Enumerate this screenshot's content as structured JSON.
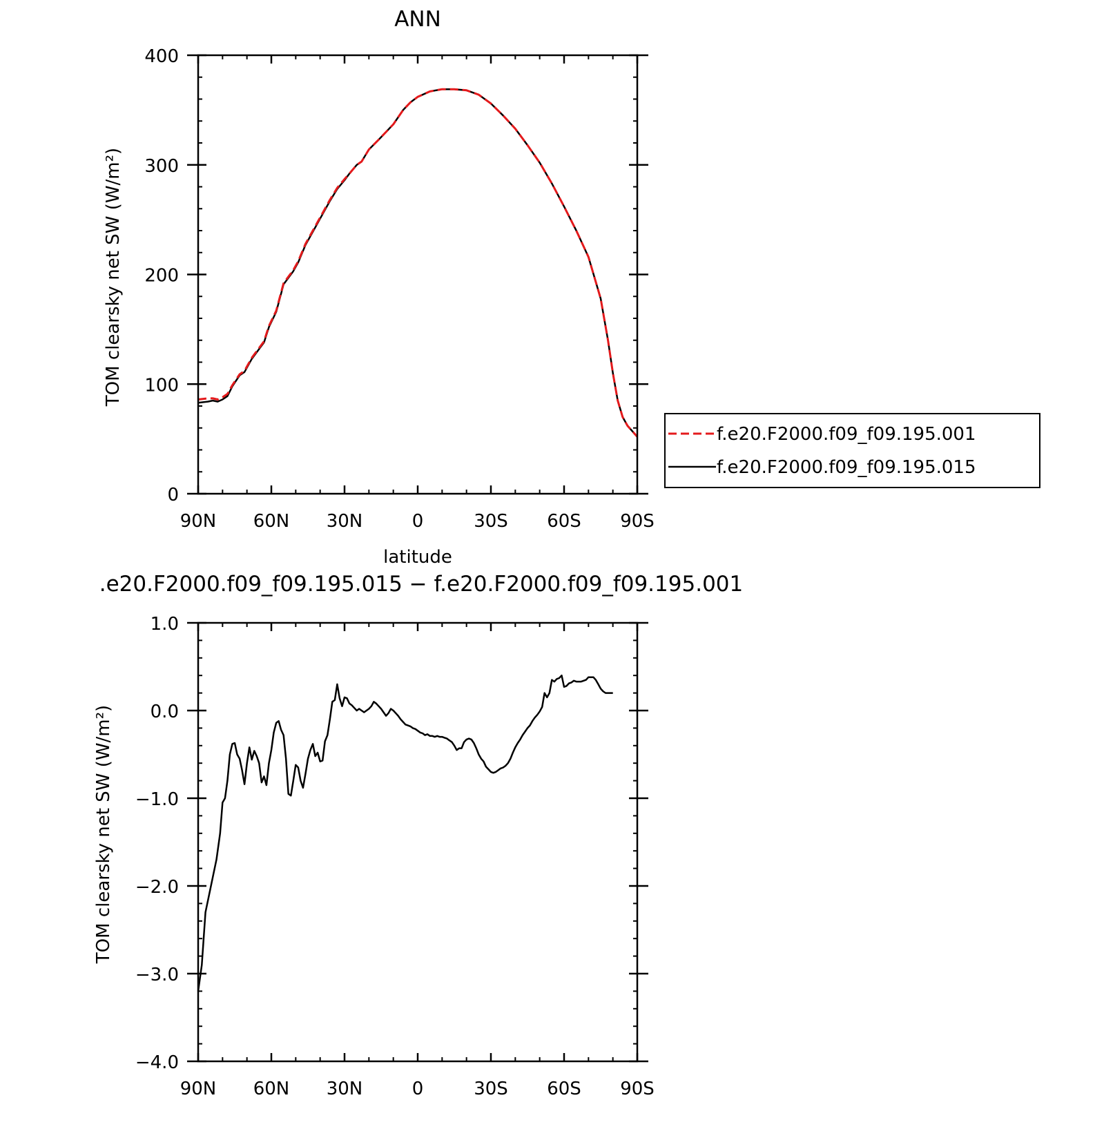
{
  "chart_data": [
    {
      "type": "line",
      "title": "ANN",
      "xlabel": "latitude",
      "ylabel": "TOM clearsky net SW (W/m²)",
      "x_ticks": [
        "90N",
        "60N",
        "30N",
        "0",
        "30S",
        "60S",
        "90S"
      ],
      "y_ticks": [
        "400",
        "300",
        "200",
        "100",
        "0"
      ],
      "xlim": [
        90,
        -90
      ],
      "ylim": [
        0,
        400
      ],
      "grid": false,
      "legend_position": "outside-right",
      "series": [
        {
          "name": "f.e20.F2000.f09_f09.195.001",
          "color": "#e41a1c",
          "dashed": true,
          "points": [
            [
              90,
              86
            ],
            [
              86,
              87
            ],
            [
              84,
              87
            ],
            [
              82,
              86
            ],
            [
              80,
              88
            ],
            [
              78,
              91
            ],
            [
              76,
              99
            ],
            [
              73,
              109
            ],
            [
              71,
              112
            ],
            [
              68,
              124
            ],
            [
              65,
              133
            ],
            [
              63,
              139
            ],
            [
              61,
              153
            ],
            [
              58,
              167
            ],
            [
              55,
              192
            ],
            [
              51,
              204
            ],
            [
              49,
              212
            ],
            [
              46,
              228
            ],
            [
              43,
              240
            ],
            [
              39,
              256
            ],
            [
              36,
              268
            ],
            [
              33,
              279
            ],
            [
              30,
              287
            ],
            [
              28,
              292
            ],
            [
              25,
              300
            ],
            [
              23,
              303
            ],
            [
              20,
              314
            ],
            [
              16,
              323
            ],
            [
              13,
              330
            ],
            [
              10,
              337
            ],
            [
              6,
              350
            ],
            [
              3,
              357
            ],
            [
              0,
              362
            ],
            [
              -5,
              367
            ],
            [
              -10,
              369
            ],
            [
              -15,
              369
            ],
            [
              -20,
              368
            ],
            [
              -25,
              364
            ],
            [
              -30,
              356
            ],
            [
              -35,
              345
            ],
            [
              -40,
              333
            ],
            [
              -45,
              318
            ],
            [
              -50,
              302
            ],
            [
              -55,
              283
            ],
            [
              -60,
              262
            ],
            [
              -65,
              240
            ],
            [
              -70,
              216
            ],
            [
              -75,
              178
            ],
            [
              -78,
              140
            ],
            [
              -80,
              110
            ],
            [
              -82,
              85
            ],
            [
              -84,
              70
            ],
            [
              -86,
              62
            ],
            [
              -88,
              57
            ],
            [
              -90,
              52
            ]
          ]
        },
        {
          "name": "f.e20.F2000.f09_f09.195.015",
          "color": "#000000",
          "dashed": false,
          "points": [
            [
              90,
              83
            ],
            [
              86,
              84
            ],
            [
              84,
              85
            ],
            [
              82,
              84
            ],
            [
              80,
              86
            ],
            [
              78,
              89
            ],
            [
              76,
              98
            ],
            [
              73,
              108
            ],
            [
              71,
              111
            ],
            [
              68,
              123
            ],
            [
              65,
              132
            ],
            [
              63,
              138
            ],
            [
              61,
              152
            ],
            [
              58,
              166
            ],
            [
              55,
              191
            ],
            [
              51,
              203
            ],
            [
              49,
              211
            ],
            [
              46,
              227
            ],
            [
              43,
              239
            ],
            [
              39,
              255
            ],
            [
              36,
              267
            ],
            [
              33,
              278
            ],
            [
              30,
              286
            ],
            [
              28,
              292
            ],
            [
              25,
              300
            ],
            [
              23,
              303
            ],
            [
              20,
              314
            ],
            [
              16,
              323
            ],
            [
              13,
              330
            ],
            [
              10,
              337
            ],
            [
              6,
              350
            ],
            [
              3,
              357
            ],
            [
              0,
              362
            ],
            [
              -5,
              367
            ],
            [
              -10,
              369
            ],
            [
              -15,
              369
            ],
            [
              -20,
              368
            ],
            [
              -25,
              364
            ],
            [
              -30,
              356
            ],
            [
              -35,
              345
            ],
            [
              -40,
              333
            ],
            [
              -45,
              318
            ],
            [
              -50,
              302
            ],
            [
              -55,
              283
            ],
            [
              -60,
              262
            ],
            [
              -65,
              240
            ],
            [
              -70,
              216
            ],
            [
              -75,
              178
            ],
            [
              -78,
              140
            ],
            [
              -80,
              110
            ],
            [
              -82,
              85
            ],
            [
              -84,
              70
            ],
            [
              -86,
              62
            ],
            [
              -88,
              57
            ],
            [
              -90,
              52
            ]
          ]
        }
      ]
    },
    {
      "type": "line",
      "title": ".e20.F2000.f09_f09.195.015 − f.e20.F2000.f09_f09.195.001",
      "xlabel": "latitude",
      "ylabel": "TOM clearsky net SW (W/m²)",
      "x_ticks": [
        "90N",
        "60N",
        "30N",
        "0",
        "30S",
        "60S",
        "90S"
      ],
      "y_ticks": [
        "1.0",
        "0.0",
        "−1.0",
        "−2.0",
        "−3.0",
        "−4.0"
      ],
      "xlim": [
        90,
        -90
      ],
      "ylim": [
        -4,
        1
      ],
      "grid": false,
      "series": [
        {
          "name": "",
          "color": "#000000",
          "dashed": false,
          "points": [
            [
              90,
              -3.2
            ],
            [
              88.5,
              -2.9
            ],
            [
              87,
              -2.3
            ],
            [
              85.5,
              -2.1
            ],
            [
              84,
              -1.9
            ],
            [
              82.5,
              -1.7
            ],
            [
              81,
              -1.4
            ],
            [
              80,
              -1.05
            ],
            [
              79,
              -1.0
            ],
            [
              78,
              -0.8
            ],
            [
              77,
              -0.5
            ],
            [
              76,
              -0.38
            ],
            [
              75,
              -0.37
            ],
            [
              74,
              -0.5
            ],
            [
              73,
              -0.55
            ],
            [
              72,
              -0.68
            ],
            [
              71,
              -0.84
            ],
            [
              70,
              -0.6
            ],
            [
              69,
              -0.42
            ],
            [
              68,
              -0.56
            ],
            [
              67,
              -0.46
            ],
            [
              66,
              -0.52
            ],
            [
              65,
              -0.6
            ],
            [
              64,
              -0.82
            ],
            [
              63,
              -0.75
            ],
            [
              62,
              -0.85
            ],
            [
              61,
              -0.6
            ],
            [
              60,
              -0.45
            ],
            [
              59,
              -0.25
            ],
            [
              58,
              -0.14
            ],
            [
              57,
              -0.12
            ],
            [
              56,
              -0.22
            ],
            [
              55,
              -0.28
            ],
            [
              54,
              -0.55
            ],
            [
              53,
              -0.95
            ],
            [
              52,
              -0.97
            ],
            [
              51,
              -0.8
            ],
            [
              50,
              -0.62
            ],
            [
              49,
              -0.65
            ],
            [
              48,
              -0.8
            ],
            [
              47,
              -0.88
            ],
            [
              46,
              -0.72
            ],
            [
              45,
              -0.55
            ],
            [
              44,
              -0.45
            ],
            [
              43,
              -0.38
            ],
            [
              42,
              -0.52
            ],
            [
              41,
              -0.48
            ],
            [
              40,
              -0.58
            ],
            [
              39,
              -0.57
            ],
            [
              38,
              -0.35
            ],
            [
              37,
              -0.28
            ],
            [
              36,
              -0.1
            ],
            [
              35,
              0.1
            ],
            [
              34,
              0.12
            ],
            [
              33,
              0.3
            ],
            [
              32,
              0.14
            ],
            [
              31,
              0.05
            ],
            [
              30,
              0.15
            ],
            [
              29,
              0.14
            ],
            [
              28,
              0.08
            ],
            [
              27,
              0.06
            ],
            [
              26,
              0.03
            ],
            [
              25,
              0.0
            ],
            [
              24,
              0.02
            ],
            [
              23,
              0.0
            ],
            [
              22,
              -0.02
            ],
            [
              21,
              0.0
            ],
            [
              20,
              0.02
            ],
            [
              19,
              0.05
            ],
            [
              18,
              0.1
            ],
            [
              17,
              0.08
            ],
            [
              16,
              0.05
            ],
            [
              15,
              0.02
            ],
            [
              14,
              -0.02
            ],
            [
              13,
              -0.06
            ],
            [
              12,
              -0.03
            ],
            [
              11,
              0.02
            ],
            [
              10,
              0.0
            ],
            [
              9,
              -0.03
            ],
            [
              8,
              -0.06
            ],
            [
              7,
              -0.1
            ],
            [
              6,
              -0.13
            ],
            [
              5,
              -0.16
            ],
            [
              4,
              -0.17
            ],
            [
              3,
              -0.18
            ],
            [
              2,
              -0.2
            ],
            [
              1,
              -0.21
            ],
            [
              0,
              -0.23
            ],
            [
              -1,
              -0.25
            ],
            [
              -2,
              -0.26
            ],
            [
              -3,
              -0.28
            ],
            [
              -4,
              -0.27
            ],
            [
              -5,
              -0.29
            ],
            [
              -6,
              -0.29
            ],
            [
              -7,
              -0.3
            ],
            [
              -8,
              -0.29
            ],
            [
              -9,
              -0.3
            ],
            [
              -10,
              -0.3
            ],
            [
              -11,
              -0.31
            ],
            [
              -12,
              -0.32
            ],
            [
              -13,
              -0.34
            ],
            [
              -14,
              -0.36
            ],
            [
              -15,
              -0.4
            ],
            [
              -16,
              -0.45
            ],
            [
              -17,
              -0.43
            ],
            [
              -18,
              -0.43
            ],
            [
              -19,
              -0.36
            ],
            [
              -20,
              -0.33
            ],
            [
              -21,
              -0.32
            ],
            [
              -22,
              -0.33
            ],
            [
              -23,
              -0.37
            ],
            [
              -24,
              -0.43
            ],
            [
              -25,
              -0.5
            ],
            [
              -26,
              -0.55
            ],
            [
              -27,
              -0.58
            ],
            [
              -28,
              -0.64
            ],
            [
              -29,
              -0.67
            ],
            [
              -30,
              -0.7
            ],
            [
              -31,
              -0.71
            ],
            [
              -32,
              -0.7
            ],
            [
              -33,
              -0.68
            ],
            [
              -34,
              -0.66
            ],
            [
              -35,
              -0.65
            ],
            [
              -36,
              -0.63
            ],
            [
              -37,
              -0.6
            ],
            [
              -38,
              -0.55
            ],
            [
              -39,
              -0.48
            ],
            [
              -40,
              -0.42
            ],
            [
              -41,
              -0.37
            ],
            [
              -42,
              -0.33
            ],
            [
              -43,
              -0.28
            ],
            [
              -44,
              -0.24
            ],
            [
              -45,
              -0.2
            ],
            [
              -46,
              -0.17
            ],
            [
              -47,
              -0.12
            ],
            [
              -48,
              -0.08
            ],
            [
              -49,
              -0.05
            ],
            [
              -50,
              -0.01
            ],
            [
              -51,
              0.04
            ],
            [
              -52,
              0.2
            ],
            [
              -53,
              0.15
            ],
            [
              -54,
              0.2
            ],
            [
              -55,
              0.35
            ],
            [
              -56,
              0.33
            ],
            [
              -57,
              0.36
            ],
            [
              -58,
              0.37
            ],
            [
              -59,
              0.4
            ],
            [
              -60,
              0.27
            ],
            [
              -61,
              0.28
            ],
            [
              -62,
              0.31
            ],
            [
              -63,
              0.32
            ],
            [
              -64,
              0.34
            ],
            [
              -65,
              0.33
            ],
            [
              -66,
              0.33
            ],
            [
              -67,
              0.33
            ],
            [
              -68,
              0.34
            ],
            [
              -69,
              0.35
            ],
            [
              -70,
              0.38
            ],
            [
              -71,
              0.38
            ],
            [
              -72,
              0.38
            ],
            [
              -73,
              0.35
            ],
            [
              -74,
              0.3
            ],
            [
              -75,
              0.25
            ],
            [
              -76,
              0.22
            ],
            [
              -77,
              0.2
            ],
            [
              -78,
              0.2
            ],
            [
              -79,
              0.2
            ],
            [
              -80,
              0.2
            ]
          ]
        }
      ]
    }
  ]
}
